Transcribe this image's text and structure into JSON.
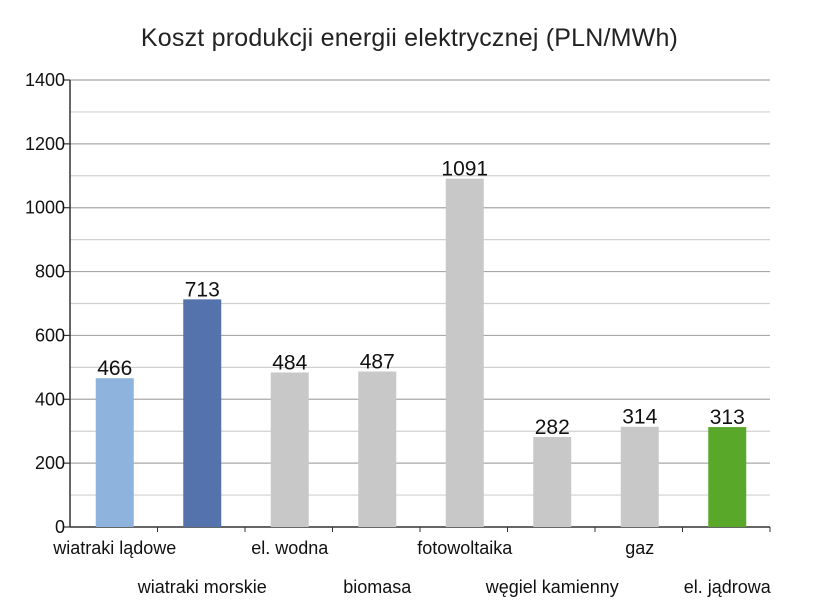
{
  "chart_data": {
    "type": "bar",
    "title": "Koszt produkcji energii elektrycznej (PLN/MWh)",
    "xlabel": "",
    "ylabel": "",
    "ylim": [
      0,
      1400
    ],
    "yticks": [
      0,
      200,
      400,
      600,
      800,
      1000,
      1200,
      1400
    ],
    "grid": true,
    "legend": "none",
    "categories": [
      "wiatraki lądowe",
      "wiatraki morskie",
      "el. wodna",
      "biomasa",
      "fotowoltaika",
      "węgiel kamienny",
      "gaz",
      "el. jądrowa"
    ],
    "values": [
      466,
      713,
      484,
      487,
      1091,
      282,
      314,
      313
    ],
    "data_labels": [
      "466",
      "713",
      "484",
      "487",
      "1091",
      "282",
      "314",
      "313"
    ],
    "colors": [
      "#8eb3dc",
      "#5473ad",
      "#c8c8c8",
      "#c8c8c8",
      "#c8c8c8",
      "#c8c8c8",
      "#c8c8c8",
      "#5aa82a"
    ]
  }
}
